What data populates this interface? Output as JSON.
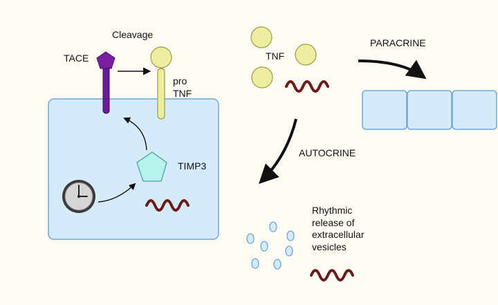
{
  "labels": {
    "cleavage": "Cleavage",
    "tace": "TACE",
    "pro_tnf": [
      "pro",
      "TNF"
    ],
    "tnf": "TNF",
    "paracrine": "PARACRINE",
    "autocrine": "AUTOCRINE",
    "timp3": "TIMP3",
    "rhythmic_release": [
      "Rhythmic",
      "release of",
      "extracellular",
      "vesicles"
    ]
  },
  "colors": {
    "background": "#fdfbf3",
    "cell_fill": "#d6ebfa",
    "cell_stroke": "#6fa6d6",
    "tace_purple": "#6a1b9a",
    "tnf_yellow": "#eeeea0",
    "tnf_stroke": "#9a9a40",
    "rna_wave": "#6b1a1a",
    "timp3_fill": "#b7f3ee",
    "timp3_stroke": "#5aaea6",
    "vesicle_fill": "#d6ebfa",
    "vesicle_stroke": "#6fa6d6",
    "clock_fill": "#bdbdbd",
    "arrow": "#111111"
  },
  "icons": [
    "tace-receptor-icon",
    "pro-tnf-icon",
    "tnf-molecule-icon",
    "rna-wave-icon",
    "timp3-icon",
    "clock-icon",
    "vesicle-icon"
  ]
}
